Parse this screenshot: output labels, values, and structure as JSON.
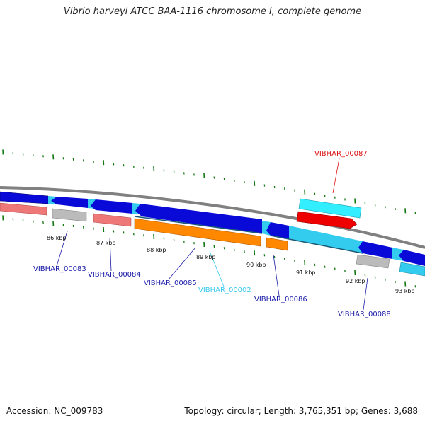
{
  "title": "Vibrio harveyi ATCC BAA-1116 chromosome I, complete genome",
  "footer": {
    "accession": "Accession: NC_009783",
    "summary": "Topology: circular; Length: 3,765,351 bp; Genes: 3,688"
  },
  "kbp_labels": [
    "86 kbp",
    "87 kbp",
    "88 kbp",
    "89 kbp",
    "90 kbp",
    "91 kbp",
    "92 kbp",
    "93 kbp"
  ],
  "gene_labels": [
    {
      "text": "VIBHAR_00083",
      "color": "#1a1aa8"
    },
    {
      "text": "VIBHAR_00084",
      "color": "#1a1aa8"
    },
    {
      "text": "VIBHAR_00085",
      "color": "#1a1aa8"
    },
    {
      "text": "VIBHAR_00002",
      "color": "#38c8ee"
    },
    {
      "text": "VIBHAR_00086",
      "color": "#1a1aa8"
    },
    {
      "text": "VIBHAR_00087",
      "color": "#dd1111"
    },
    {
      "text": "VIBHAR_00088",
      "color": "#1a1aa8"
    }
  ],
  "colors": {
    "backbone": "#808080",
    "cds_blue": "#0a0ad8",
    "cds_cyan": "#33ccee",
    "orange": "#ff8800",
    "pink": "#ee7777",
    "gray": "#bbbbbb",
    "red": "#ee0000",
    "tick_green": "#117711"
  }
}
